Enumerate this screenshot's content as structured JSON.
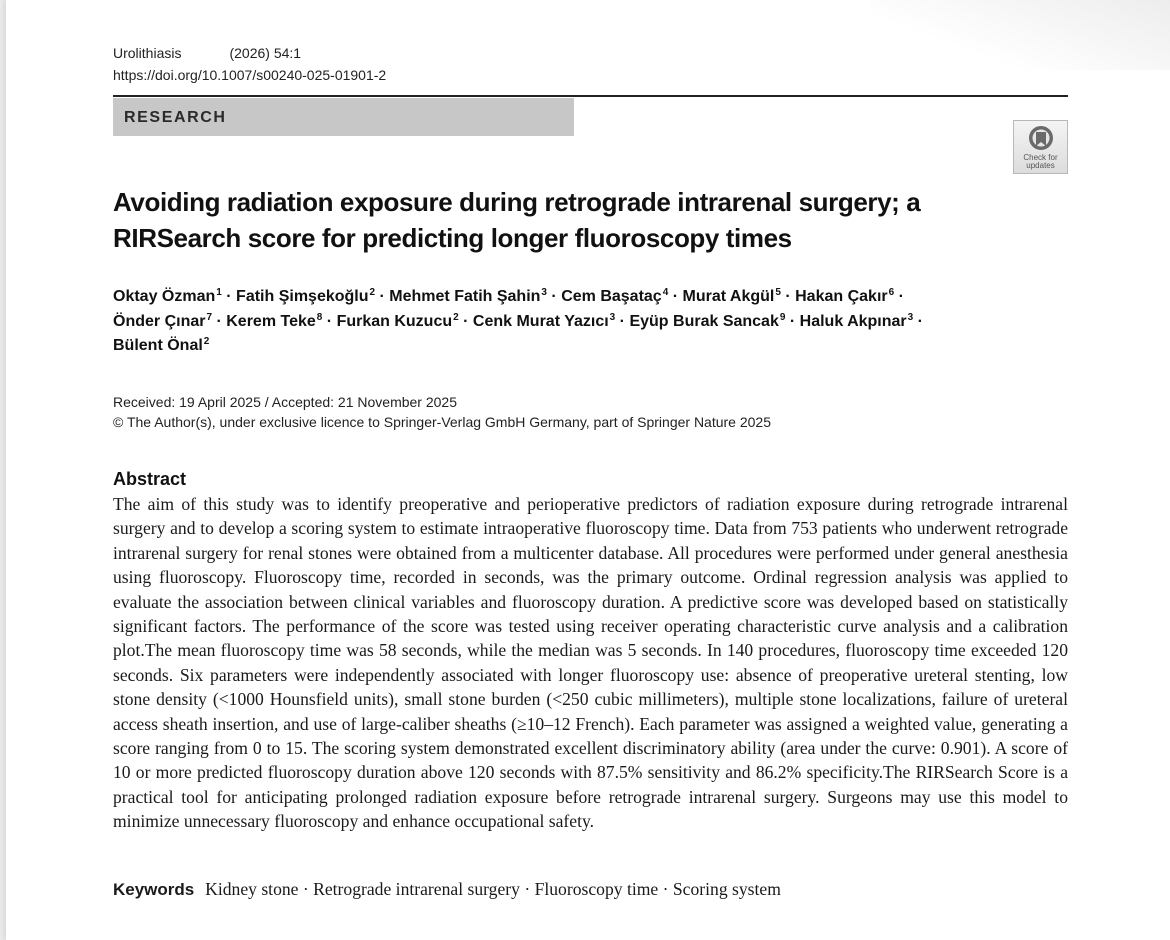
{
  "header": {
    "journal": "Urolithiasis",
    "year_vol": "(2026) 54:1",
    "doi": "https://doi.org/10.1007/s00240-025-01901-2"
  },
  "section_label": "RESEARCH",
  "check_updates": {
    "icon": "check-for-updates-icon",
    "line1": "Check for",
    "line2": "updates"
  },
  "title": "Avoiding radiation exposure during retrograde intrarenal surgery; a RIRSearch score for predicting longer fluoroscopy times",
  "authors": [
    {
      "name": "Oktay Özman",
      "aff": "1"
    },
    {
      "name": "Fatih Şimşekoğlu",
      "aff": "2"
    },
    {
      "name": "Mehmet Fatih Şahin",
      "aff": "3"
    },
    {
      "name": "Cem Başataç",
      "aff": "4"
    },
    {
      "name": "Murat Akgül",
      "aff": "5"
    },
    {
      "name": "Hakan Çakır",
      "aff": "6"
    },
    {
      "name": "Önder Çınar",
      "aff": "7"
    },
    {
      "name": "Kerem Teke",
      "aff": "8"
    },
    {
      "name": "Furkan Kuzucu",
      "aff": "2"
    },
    {
      "name": "Cenk Murat Yazıcı",
      "aff": "3"
    },
    {
      "name": "Eyüp Burak Sancak",
      "aff": "9"
    },
    {
      "name": "Haluk Akpınar",
      "aff": "3"
    },
    {
      "name": "Bülent Önal",
      "aff": "2"
    }
  ],
  "dates": "Received: 19 April 2025 / Accepted: 21 November 2025",
  "copyright": "© The Author(s), under exclusive licence to Springer-Verlag GmbH Germany, part of Springer Nature 2025",
  "abstract": {
    "heading": "Abstract",
    "text": "The aim of this study was to identify preoperative and perioperative predictors of radiation exposure during retrograde intrarenal surgery and to develop a scoring system to estimate intraoperative fluoroscopy time. Data from 753 patients who underwent retrograde intrarenal surgery for renal stones were obtained from a multicenter database. All procedures were performed under general anesthesia using fluoroscopy. Fluoroscopy time, recorded in seconds, was the primary outcome. Ordinal regression analysis was applied to evaluate the association between clinical variables and fluoroscopy duration. A predictive score was developed based on statistically significant factors. The performance of the score was tested using receiver operating characteristic curve analysis and a calibration plot.The mean fluoroscopy time was 58 seconds, while the median was 5 seconds. In 140 procedures, fluoroscopy time exceeded 120 seconds. Six parameters were independently associated with longer fluoroscopy use: absence of preoperative ureteral stenting, low stone density (<1000 Hounsfield units), small stone burden (<250 cubic millimeters), multiple stone localizations, failure of ureteral access sheath inser­tion, and use of large-caliber sheaths (≥10–12 French). Each parameter was assigned a weighted value, generating a score ranging from 0 to 15. The scoring system demonstrated excellent discriminatory ability (area under the curve: 0.901). A score of 10 or more predicted fluoroscopy duration above 120 seconds with 87.5% sensitivity and 86.2% specificity.The RIRSearch Score is a practical tool for anticipating prolonged radiation exposure before retrograde intrarenal surgery. Surgeons may use this model to minimize unnecessary fluoroscopy and enhance occupational safety."
  },
  "keywords": {
    "label": "Keywords",
    "list": "Kidney stone · Retrograde intrarenal surgery · Fluoroscopy time · Scoring system"
  }
}
